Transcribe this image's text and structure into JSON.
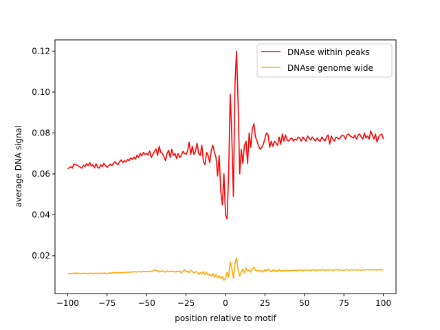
{
  "chart_data": {
    "type": "line",
    "xlabel": "position relative to motif",
    "ylabel": "average DNA signal",
    "xlim": [
      -108,
      108
    ],
    "ylim": [
      0.0015,
      0.1255
    ],
    "xticks": [
      -100,
      -75,
      -50,
      -25,
      0,
      25,
      50,
      75,
      100
    ],
    "xtick_labels": [
      "−100",
      "−75",
      "−50",
      "−25",
      "0",
      "25",
      "50",
      "75",
      "100"
    ],
    "yticks": [
      0.02,
      0.04,
      0.06,
      0.08,
      0.1,
      0.12
    ],
    "ytick_labels": [
      "0.02",
      "0.04",
      "0.06",
      "0.08",
      "0.10",
      "0.12"
    ],
    "grid": false,
    "legend": "top-right",
    "x_start": -100,
    "x_step": 1,
    "series": [
      {
        "name": "DNAse within peaks",
        "color": "#ff0000",
        "values": [
          0.0625,
          0.063,
          0.0635,
          0.0628,
          0.0648,
          0.0645,
          0.0643,
          0.0638,
          0.0632,
          0.0628,
          0.0642,
          0.0635,
          0.065,
          0.064,
          0.0655,
          0.0638,
          0.0645,
          0.063,
          0.065,
          0.0632,
          0.0628,
          0.0645,
          0.0635,
          0.0652,
          0.064,
          0.0632,
          0.064,
          0.0648,
          0.064,
          0.0652,
          0.066,
          0.065,
          0.0645,
          0.066,
          0.0668,
          0.0655,
          0.0665,
          0.0658,
          0.067,
          0.0665,
          0.0678,
          0.067,
          0.0682,
          0.0672,
          0.0692,
          0.068,
          0.07,
          0.0688,
          0.0705,
          0.0695,
          0.07,
          0.0692,
          0.0712,
          0.068,
          0.0695,
          0.071,
          0.0722,
          0.069,
          0.0735,
          0.0705,
          0.07,
          0.0685,
          0.0665,
          0.07,
          0.0715,
          0.068,
          0.072,
          0.069,
          0.07,
          0.0675,
          0.07,
          0.068,
          0.0688,
          0.071,
          0.07,
          0.0695,
          0.0712,
          0.0755,
          0.0695,
          0.0735,
          0.0695,
          0.071,
          0.075,
          0.07,
          0.069,
          0.074,
          0.066,
          0.0645,
          0.0705,
          0.069,
          0.0655,
          0.0715,
          0.074,
          0.0705,
          0.068,
          0.059,
          0.069,
          0.0515,
          0.045,
          0.06,
          0.04,
          0.038,
          0.06,
          0.099,
          0.078,
          0.049,
          0.104,
          0.12,
          0.094,
          0.06,
          0.072,
          0.065,
          0.074,
          0.076,
          0.065,
          0.08,
          0.073,
          0.082,
          0.0845,
          0.078,
          0.076,
          0.0735,
          0.072,
          0.073,
          0.0745,
          0.0775,
          0.08,
          0.079,
          0.073,
          0.076,
          0.0735,
          0.076,
          0.075,
          0.074,
          0.078,
          0.0745,
          0.0795,
          0.076,
          0.079,
          0.0765,
          0.076,
          0.077,
          0.0775,
          0.076,
          0.077,
          0.0765,
          0.078,
          0.0775,
          0.076,
          0.078,
          0.077,
          0.076,
          0.0785,
          0.0775,
          0.0765,
          0.078,
          0.077,
          0.076,
          0.0775,
          0.0765,
          0.076,
          0.078,
          0.077,
          0.076,
          0.078,
          0.079,
          0.0745,
          0.0785,
          0.077,
          0.076,
          0.078,
          0.0775,
          0.077,
          0.078,
          0.079,
          0.0785,
          0.077,
          0.079,
          0.0795,
          0.0785,
          0.078,
          0.0775,
          0.079,
          0.077,
          0.079,
          0.0795,
          0.078,
          0.077,
          0.08,
          0.0775,
          0.0785,
          0.077,
          0.081,
          0.079,
          0.077,
          0.0795,
          0.0755,
          0.078,
          0.079,
          0.0795,
          0.077
        ]
      },
      {
        "name": "DNAse genome wide",
        "color": "#ffa500",
        "values": [
          0.0112,
          0.0113,
          0.0112,
          0.0115,
          0.0113,
          0.0116,
          0.0114,
          0.0115,
          0.0113,
          0.0114,
          0.0115,
          0.0113,
          0.0114,
          0.0112,
          0.0115,
          0.0114,
          0.0113,
          0.0115,
          0.0114,
          0.0113,
          0.0115,
          0.0114,
          0.0113,
          0.0116,
          0.0114,
          0.0112,
          0.0115,
          0.0116,
          0.0114,
          0.0118,
          0.0116,
          0.0118,
          0.0117,
          0.0116,
          0.0118,
          0.0117,
          0.0119,
          0.0118,
          0.012,
          0.0119,
          0.0121,
          0.012,
          0.0122,
          0.0121,
          0.012,
          0.0123,
          0.0122,
          0.0121,
          0.0124,
          0.0123,
          0.0122,
          0.0124,
          0.0123,
          0.0125,
          0.0124,
          0.0132,
          0.0125,
          0.0128,
          0.012,
          0.0124,
          0.0126,
          0.0122,
          0.012,
          0.0126,
          0.0124,
          0.0122,
          0.0125,
          0.0123,
          0.012,
          0.0124,
          0.0122,
          0.0126,
          0.0116,
          0.0124,
          0.0132,
          0.012,
          0.0125,
          0.0118,
          0.0128,
          0.0124,
          0.0115,
          0.0122,
          0.012,
          0.011,
          0.0118,
          0.0112,
          0.0122,
          0.0108,
          0.0118,
          0.0105,
          0.011,
          0.01,
          0.0112,
          0.0095,
          0.0108,
          0.0092,
          0.0102,
          0.0088,
          0.0098,
          0.008,
          0.009,
          0.012,
          0.0095,
          0.017,
          0.014,
          0.009,
          0.016,
          0.019,
          0.013,
          0.01,
          0.012,
          0.0135,
          0.0115,
          0.014,
          0.0125,
          0.013,
          0.012,
          0.0135,
          0.0145,
          0.0128,
          0.0125,
          0.013,
          0.0122,
          0.0128,
          0.012,
          0.0132,
          0.0125,
          0.0135,
          0.0128,
          0.0122,
          0.013,
          0.0125,
          0.0128,
          0.0122,
          0.0132,
          0.0125,
          0.0128,
          0.0124,
          0.013,
          0.0126,
          0.0128,
          0.0125,
          0.013,
          0.0127,
          0.0129,
          0.0126,
          0.0131,
          0.0128,
          0.013,
          0.0127,
          0.0129,
          0.0131,
          0.0128,
          0.013,
          0.0127,
          0.0132,
          0.0129,
          0.013,
          0.0128,
          0.0131,
          0.0129,
          0.0132,
          0.013,
          0.0128,
          0.0131,
          0.0129,
          0.0132,
          0.013,
          0.0128,
          0.0131,
          0.013,
          0.0132,
          0.0129,
          0.0131,
          0.013,
          0.0128,
          0.0131,
          0.0132,
          0.013,
          0.0129,
          0.0131,
          0.013,
          0.0132,
          0.0129,
          0.0131,
          0.013,
          0.0128,
          0.0132,
          0.013,
          0.0131,
          0.0133,
          0.013,
          0.0132,
          0.0131,
          0.013,
          0.0132,
          0.0129,
          0.0133,
          0.013,
          0.0131,
          0.013
        ]
      }
    ]
  }
}
